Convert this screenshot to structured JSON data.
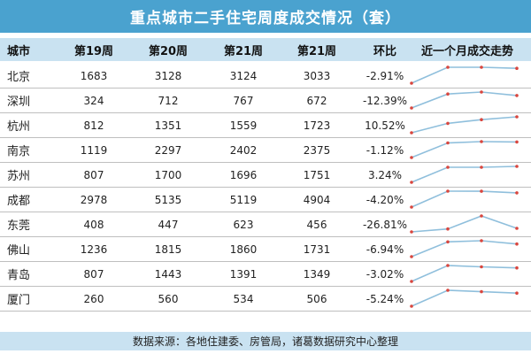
{
  "title": "重点城市二手住宅周度成交情况（套）",
  "headers": [
    "城市",
    "第19周",
    "第20周",
    "第21周",
    "第21周",
    "环比",
    "近一个月成交走势"
  ],
  "footer": "数据来源：各地住建委、房管局，诸葛数据研究中心整理",
  "colors": {
    "title_bg": "#4aa2cf",
    "header_bg": "#c9e2f1",
    "line": "#8fbfdc",
    "point": "#d9463e"
  },
  "chart_data": {
    "type": "table",
    "title": "重点城市二手住宅周度成交情况（套）",
    "columns": [
      "城市",
      "第19周",
      "第20周",
      "第21周",
      "第21周",
      "环比",
      "近一个月成交走势"
    ],
    "rows": [
      {
        "city": "北京",
        "w1": "1683",
        "w2": "3128",
        "w3": "3124",
        "w4": "3033",
        "change": "-2.91%",
        "trend": [
          1683,
          3128,
          3124,
          3033
        ]
      },
      {
        "city": "深圳",
        "w1": "324",
        "w2": "712",
        "w3": "767",
        "w4": "672",
        "change": "-12.39%",
        "trend": [
          324,
          712,
          767,
          672
        ]
      },
      {
        "city": "杭州",
        "w1": "812",
        "w2": "1351",
        "w3": "1559",
        "w4": "1723",
        "change": "10.52%",
        "trend": [
          812,
          1351,
          1559,
          1723
        ]
      },
      {
        "city": "南京",
        "w1": "1119",
        "w2": "2297",
        "w3": "2402",
        "w4": "2375",
        "change": "-1.12%",
        "trend": [
          1119,
          2297,
          2402,
          2375
        ]
      },
      {
        "city": "苏州",
        "w1": "807",
        "w2": "1700",
        "w3": "1696",
        "w4": "1751",
        "change": "3.24%",
        "trend": [
          807,
          1700,
          1696,
          1751
        ]
      },
      {
        "city": "成都",
        "w1": "2978",
        "w2": "5135",
        "w3": "5119",
        "w4": "4904",
        "change": "-4.20%",
        "trend": [
          2978,
          5135,
          5119,
          4904
        ]
      },
      {
        "city": "东莞",
        "w1": "408",
        "w2": "447",
        "w3": "623",
        "w4": "456",
        "change": "-26.81%",
        "trend": [
          408,
          447,
          623,
          456
        ]
      },
      {
        "city": "佛山",
        "w1": "1236",
        "w2": "1815",
        "w3": "1860",
        "w4": "1731",
        "change": "-6.94%",
        "trend": [
          1236,
          1815,
          1860,
          1731
        ]
      },
      {
        "city": "青岛",
        "w1": "807",
        "w2": "1443",
        "w3": "1391",
        "w4": "1349",
        "change": "-3.02%",
        "trend": [
          807,
          1443,
          1391,
          1349
        ]
      },
      {
        "city": "厦门",
        "w1": "260",
        "w2": "560",
        "w3": "534",
        "w4": "506",
        "change": "-5.24%",
        "trend": [
          260,
          560,
          534,
          506
        ]
      }
    ]
  }
}
